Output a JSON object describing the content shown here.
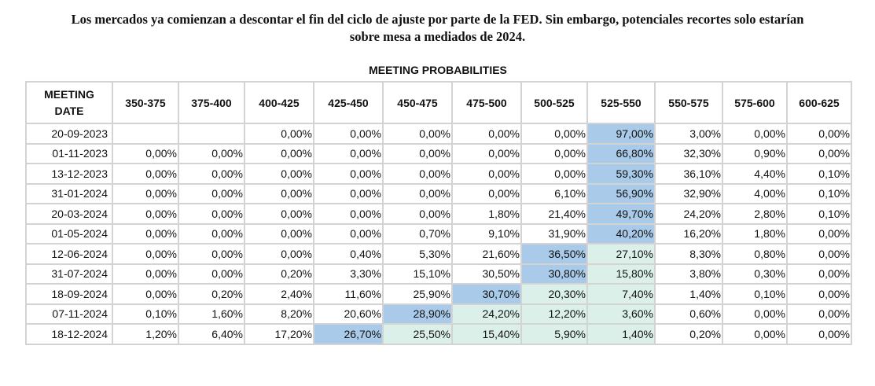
{
  "headline": {
    "line1": "Los mercados ya comienzan a descontar el fin del ciclo de ajuste por parte de la FED. Sin embargo, potenciales recortes solo estarían",
    "line2": "sobre mesa a mediados de 2024."
  },
  "chart_data": {
    "type": "table",
    "title": "MEETING PROBABILITIES",
    "date_header_line1": "MEETING",
    "date_header_line2": "DATE",
    "columns": [
      "350-375",
      "375-400",
      "400-425",
      "425-450",
      "450-475",
      "475-500",
      "500-525",
      "525-550",
      "550-575",
      "575-600",
      "600-625"
    ],
    "rows": [
      {
        "date": "20-09-2023",
        "values": [
          "",
          "",
          "0,00%",
          "0,00%",
          "0,00%",
          "0,00%",
          "0,00%",
          "97,00%",
          "3,00%",
          "0,00%",
          "0,00%"
        ],
        "highlight": 7,
        "shaded": []
      },
      {
        "date": "01-11-2023",
        "values": [
          "0,00%",
          "0,00%",
          "0,00%",
          "0,00%",
          "0,00%",
          "0,00%",
          "0,00%",
          "66,80%",
          "32,30%",
          "0,90%",
          "0,00%"
        ],
        "highlight": 7,
        "shaded": []
      },
      {
        "date": "13-12-2023",
        "values": [
          "0,00%",
          "0,00%",
          "0,00%",
          "0,00%",
          "0,00%",
          "0,00%",
          "0,00%",
          "59,30%",
          "36,10%",
          "4,40%",
          "0,10%"
        ],
        "highlight": 7,
        "shaded": []
      },
      {
        "date": "31-01-2024",
        "values": [
          "0,00%",
          "0,00%",
          "0,00%",
          "0,00%",
          "0,00%",
          "0,00%",
          "6,10%",
          "56,90%",
          "32,90%",
          "4,00%",
          "0,10%"
        ],
        "highlight": 7,
        "shaded": []
      },
      {
        "date": "20-03-2024",
        "values": [
          "0,00%",
          "0,00%",
          "0,00%",
          "0,00%",
          "0,00%",
          "1,80%",
          "21,40%",
          "49,70%",
          "24,20%",
          "2,80%",
          "0,10%"
        ],
        "highlight": 7,
        "shaded": []
      },
      {
        "date": "01-05-2024",
        "values": [
          "0,00%",
          "0,00%",
          "0,00%",
          "0,00%",
          "0,70%",
          "9,10%",
          "31,90%",
          "40,20%",
          "16,20%",
          "1,80%",
          "0,00%"
        ],
        "highlight": 7,
        "shaded": []
      },
      {
        "date": "12-06-2024",
        "values": [
          "0,00%",
          "0,00%",
          "0,00%",
          "0,40%",
          "5,30%",
          "21,60%",
          "36,50%",
          "27,10%",
          "8,30%",
          "0,80%",
          "0,00%"
        ],
        "highlight": 6,
        "shaded": [
          7
        ]
      },
      {
        "date": "31-07-2024",
        "values": [
          "0,00%",
          "0,00%",
          "0,20%",
          "3,30%",
          "15,10%",
          "30,50%",
          "30,80%",
          "15,80%",
          "3,80%",
          "0,30%",
          "0,00%"
        ],
        "highlight": 6,
        "shaded": [
          7
        ]
      },
      {
        "date": "18-09-2024",
        "values": [
          "0,00%",
          "0,20%",
          "2,40%",
          "11,60%",
          "25,90%",
          "30,70%",
          "20,30%",
          "7,40%",
          "1,40%",
          "0,10%",
          "0,00%"
        ],
        "highlight": 5,
        "shaded": [
          6,
          7
        ]
      },
      {
        "date": "07-11-2024",
        "values": [
          "0,10%",
          "1,60%",
          "8,20%",
          "20,60%",
          "28,90%",
          "24,20%",
          "12,20%",
          "3,60%",
          "0,60%",
          "0,00%",
          "0,00%"
        ],
        "highlight": 4,
        "shaded": [
          5,
          6,
          7
        ]
      },
      {
        "date": "18-12-2024",
        "values": [
          "1,20%",
          "6,40%",
          "17,20%",
          "26,70%",
          "25,50%",
          "15,40%",
          "5,90%",
          "1,40%",
          "0,20%",
          "0,00%",
          "0,00%"
        ],
        "highlight": 3,
        "shaded": [
          4,
          5,
          6,
          7
        ]
      }
    ],
    "colors": {
      "highlight": "#a9cbe9",
      "shaded": "#dbf0e8",
      "border": "#d3d3d3"
    }
  }
}
